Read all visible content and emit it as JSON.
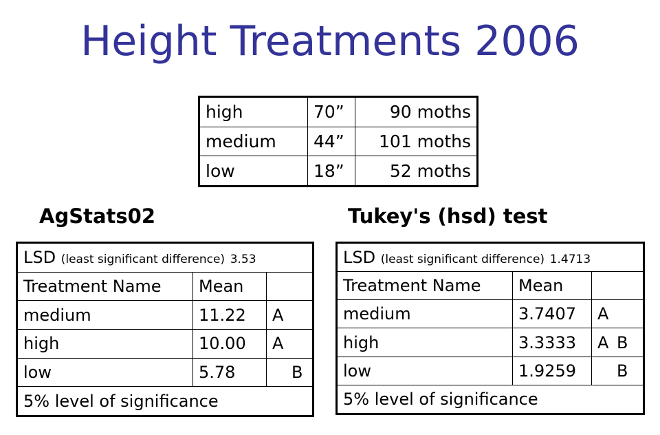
{
  "title": "Height Treatments 2006",
  "treatments": [
    {
      "name": "high",
      "height": "70”",
      "count": "90 moths"
    },
    {
      "name": "medium",
      "height": "44”",
      "count": "101 moths"
    },
    {
      "name": "low",
      "height": "18”",
      "count": "52 moths"
    }
  ],
  "agstats": {
    "heading": "AgStats02",
    "lsd_label": "LSD",
    "lsd_desc": "(least significant difference)",
    "lsd_value": "3.53",
    "col_name": "Treatment Name",
    "col_mean": "Mean",
    "rows": [
      {
        "name": "medium",
        "mean": "11.22",
        "g1": "A",
        "g2": ""
      },
      {
        "name": "high",
        "mean": "10.00",
        "g1": "A",
        "g2": ""
      },
      {
        "name": "low",
        "mean": "5.78",
        "g1": "",
        "g2": "B"
      }
    ],
    "footer": "5% level of significance"
  },
  "tukey": {
    "heading": "Tukey's (hsd) test",
    "lsd_label": "LSD",
    "lsd_desc": "(least significant difference)",
    "lsd_value": "1.4713",
    "col_name": "Treatment Name",
    "col_mean": "Mean",
    "rows": [
      {
        "name": "medium",
        "mean": "3.7407",
        "g1": "A",
        "g2": ""
      },
      {
        "name": "high",
        "mean": "3.3333",
        "g1": "A",
        "g2": "B"
      },
      {
        "name": "low",
        "mean": "1.9259",
        "g1": "",
        "g2": "B"
      }
    ],
    "footer": "5% level of significance"
  }
}
